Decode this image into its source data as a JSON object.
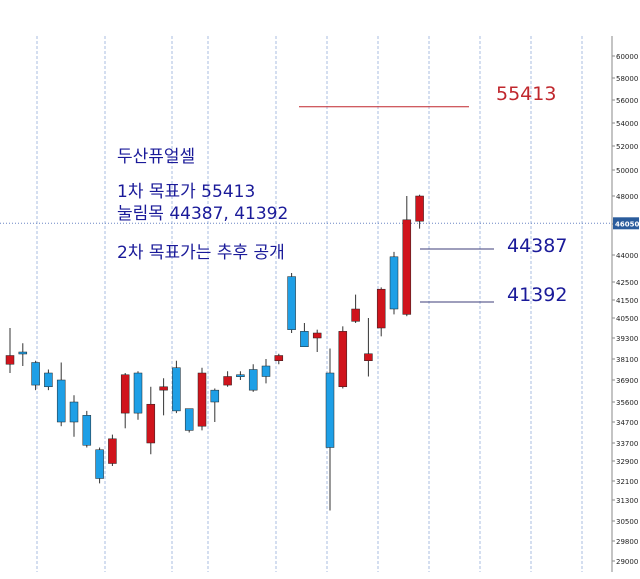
{
  "chart_data": {
    "type": "candlestick",
    "title": "",
    "ylim": [
      28500,
      60500
    ],
    "yticks": [
      29000,
      29800,
      30500,
      31300,
      32100,
      32900,
      33700,
      34700,
      35600,
      36900,
      38100,
      39300,
      40500,
      41500,
      42500,
      44000,
      46000,
      48000,
      50000,
      52000,
      54000,
      56000,
      58000,
      60000
    ],
    "current_price": "46050",
    "colors": {
      "up": "#d0141c",
      "down": "#1e9fe6",
      "grid": "#a9bde2",
      "text": "#1a1a99",
      "target": "#c0272d",
      "price_tag": "#2a5c9c"
    },
    "candles": [
      {
        "open": 37800,
        "close": 38300,
        "high": 39900,
        "low": 37300
      },
      {
        "open": 38500,
        "close": 38400,
        "high": 39000,
        "low": 37700
      },
      {
        "open": 37900,
        "close": 36600,
        "high": 38000,
        "low": 36300
      },
      {
        "open": 37300,
        "close": 36500,
        "high": 37500,
        "low": 36300
      },
      {
        "open": 36900,
        "close": 34700,
        "high": 37900,
        "low": 34500
      },
      {
        "open": 35600,
        "close": 34700,
        "high": 36000,
        "low": 34000
      },
      {
        "open": 35000,
        "close": 33600,
        "high": 35200,
        "low": 33500
      },
      {
        "open": 33400,
        "close": 32200,
        "high": 33500,
        "low": 32000
      },
      {
        "open": 32800,
        "close": 33900,
        "high": 34100,
        "low": 32700
      },
      {
        "open": 35100,
        "close": 37200,
        "high": 37300,
        "low": 34400
      },
      {
        "open": 37300,
        "close": 35100,
        "high": 37400,
        "low": 34800
      },
      {
        "open": 33700,
        "close": 35500,
        "high": 36500,
        "low": 33200
      },
      {
        "open": 36300,
        "close": 36500,
        "high": 37000,
        "low": 35000
      },
      {
        "open": 37600,
        "close": 35200,
        "high": 38000,
        "low": 35100
      },
      {
        "open": 35300,
        "close": 34300,
        "high": 35300,
        "low": 34200
      },
      {
        "open": 34500,
        "close": 37300,
        "high": 37600,
        "low": 34300
      },
      {
        "open": 36300,
        "close": 35600,
        "high": 36400,
        "low": 34700
      },
      {
        "open": 36600,
        "close": 37100,
        "high": 37400,
        "low": 36500
      },
      {
        "open": 37200,
        "close": 37100,
        "high": 37400,
        "low": 36900
      },
      {
        "open": 37500,
        "close": 36300,
        "high": 37800,
        "low": 36200
      },
      {
        "open": 37700,
        "close": 37100,
        "high": 38100,
        "low": 36700
      },
      {
        "open": 38000,
        "close": 38300,
        "high": 38400,
        "low": 37800
      },
      {
        "open": 42800,
        "close": 39800,
        "high": 43000,
        "low": 39600
      },
      {
        "open": 39700,
        "close": 38800,
        "high": 40200,
        "low": 38800
      },
      {
        "open": 39300,
        "close": 39600,
        "high": 39800,
        "low": 38500
      },
      {
        "open": 37300,
        "close": 33500,
        "high": 38700,
        "low": 30900
      },
      {
        "open": 36500,
        "close": 39700,
        "high": 40000,
        "low": 36400
      },
      {
        "open": 40300,
        "close": 41000,
        "high": 41800,
        "low": 40200
      },
      {
        "open": 38000,
        "close": 38400,
        "high": 40500,
        "low": 37100
      },
      {
        "open": 39900,
        "close": 42100,
        "high": 42200,
        "low": 39400
      },
      {
        "open": 43900,
        "close": 41000,
        "high": 44200,
        "low": 40700
      },
      {
        "open": 40700,
        "close": 46300,
        "high": 48000,
        "low": 40600
      },
      {
        "open": 46200,
        "close": 48000,
        "high": 48100,
        "low": 45700
      }
    ],
    "target_line": {
      "value": 55413,
      "label": "55413"
    },
    "support_lines": [
      {
        "value": 44387,
        "label": "44387"
      },
      {
        "value": 41392,
        "label": "41392"
      }
    ]
  },
  "annotations": {
    "title": "두산퓨얼셀",
    "line1": "1차 목표가 55413",
    "line2": "눌림목 44387, 41392",
    "line3": "2차 목표가는 추후 공개"
  }
}
